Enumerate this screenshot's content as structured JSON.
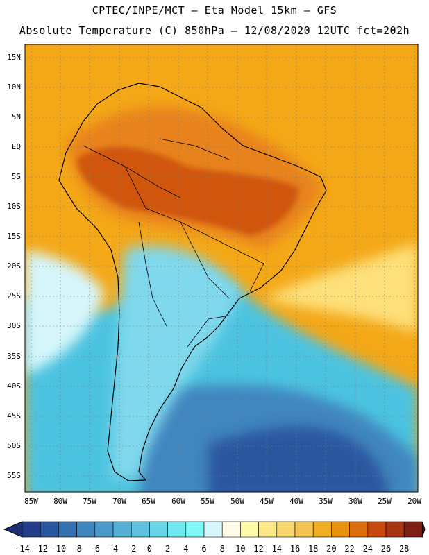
{
  "title_line1": "CPTEC/INPE/MCT –  Eta Model 15km – GFS",
  "title_line2": "Absolute Temperature (C) 850hPa – 12/08/2020 12UTC fct=202h",
  "lat_labels": [
    "15N",
    "10N",
    "5N",
    "EQ",
    "5S",
    "10S",
    "15S",
    "20S",
    "25S",
    "30S",
    "35S",
    "40S",
    "45S",
    "50S",
    "55S"
  ],
  "lon_labels": [
    "85W",
    "80W",
    "75W",
    "70W",
    "65W",
    "60W",
    "55W",
    "50W",
    "45W",
    "40W",
    "35W",
    "30W",
    "25W",
    "20W"
  ],
  "colorbar": {
    "labels": [
      "-14",
      "-12",
      "-10",
      "-8",
      "-6",
      "-4",
      "-2",
      "0",
      "2",
      "4",
      "6",
      "8",
      "10",
      "12",
      "14",
      "16",
      "18",
      "20",
      "22",
      "24",
      "26",
      "28"
    ],
    "colors": [
      "#233f8c",
      "#2a57a0",
      "#3570b0",
      "#3f86bf",
      "#4a9bcb",
      "#55b0d6",
      "#5fc3df",
      "#66d6e8",
      "#6fe8f0",
      "#7ff8f8",
      "#d6f6fb",
      "#fffbe6",
      "#fffaa8",
      "#fde985",
      "#f8d86e",
      "#f4c552",
      "#efae24",
      "#e89210",
      "#dc6e0e",
      "#c6480e",
      "#a83412",
      "#7f1e12"
    ],
    "left_arrow_color": "#1e2f74",
    "right_arrow_color": "#6a0a12"
  },
  "field_colors": {
    "ocean_cold": "#4cc3e0",
    "ocean_deep": "#2a57a0",
    "ocean_mid": "#3f86bf",
    "tropical": "#f4a817",
    "warm_land": "#e8821a",
    "hot_land": "#d0560f",
    "cool_land": "#7fd8ec",
    "pale": "#fff5b0",
    "yellow": "#fde07a"
  }
}
